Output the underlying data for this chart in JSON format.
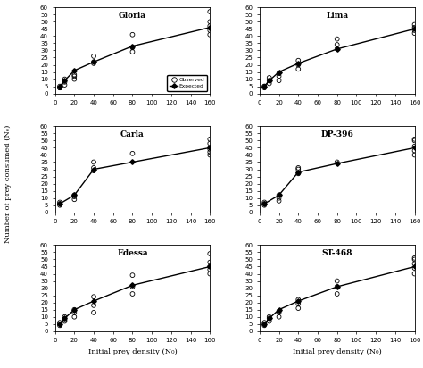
{
  "subplots": [
    {
      "title": "Gloria",
      "observed_x": [
        5,
        5,
        5,
        10,
        10,
        10,
        20,
        20,
        20,
        40,
        40,
        40,
        80,
        80,
        80,
        160,
        160,
        160,
        160,
        160
      ],
      "observed_y": [
        4,
        4,
        5,
        6,
        8,
        10,
        10,
        12,
        13,
        21,
        22,
        26,
        29,
        32,
        41,
        41,
        44,
        47,
        50,
        57
      ],
      "expected_x": [
        5,
        10,
        20,
        40,
        80,
        160
      ],
      "expected_y": [
        5,
        9,
        16,
        22,
        33,
        46
      ]
    },
    {
      "title": "Lima",
      "observed_x": [
        5,
        5,
        5,
        10,
        10,
        10,
        20,
        20,
        20,
        40,
        40,
        40,
        80,
        80,
        80,
        160,
        160,
        160,
        160,
        160
      ],
      "observed_y": [
        4,
        5,
        5,
        7,
        9,
        11,
        9,
        12,
        14,
        17,
        20,
        23,
        31,
        34,
        38,
        42,
        44,
        45,
        46,
        48
      ],
      "expected_x": [
        5,
        10,
        20,
        40,
        80,
        160
      ],
      "expected_y": [
        5,
        9,
        15,
        21,
        31,
        45
      ]
    },
    {
      "title": "Carla",
      "observed_x": [
        5,
        5,
        5,
        20,
        20,
        20,
        40,
        40,
        40,
        80,
        160,
        160,
        160,
        160,
        160
      ],
      "observed_y": [
        5,
        6,
        7,
        9,
        11,
        12,
        29,
        31,
        35,
        41,
        40,
        42,
        44,
        48,
        51
      ],
      "expected_x": [
        5,
        20,
        40,
        80,
        160
      ],
      "expected_y": [
        6,
        12,
        30,
        35,
        45
      ]
    },
    {
      "title": "DP-396",
      "observed_x": [
        5,
        5,
        5,
        20,
        20,
        20,
        40,
        40,
        40,
        80,
        160,
        160,
        160,
        160,
        160
      ],
      "observed_y": [
        5,
        6,
        7,
        8,
        10,
        12,
        27,
        30,
        31,
        35,
        40,
        43,
        46,
        50,
        51
      ],
      "expected_x": [
        5,
        20,
        40,
        80,
        160
      ],
      "expected_y": [
        6,
        12,
        28,
        34,
        45
      ]
    },
    {
      "title": "Edessa",
      "observed_x": [
        5,
        5,
        5,
        10,
        10,
        10,
        20,
        20,
        20,
        40,
        40,
        40,
        80,
        80,
        80,
        160,
        160,
        160,
        160,
        160
      ],
      "observed_y": [
        4,
        5,
        6,
        7,
        8,
        10,
        10,
        13,
        15,
        13,
        18,
        24,
        26,
        31,
        39,
        40,
        43,
        45,
        48,
        54
      ],
      "expected_x": [
        5,
        10,
        20,
        40,
        80,
        160
      ],
      "expected_y": [
        5,
        9,
        15,
        21,
        32,
        45
      ]
    },
    {
      "title": "ST-468",
      "observed_x": [
        5,
        5,
        5,
        10,
        10,
        10,
        20,
        20,
        20,
        40,
        40,
        40,
        80,
        80,
        80,
        160,
        160,
        160,
        160,
        160
      ],
      "observed_y": [
        4,
        5,
        6,
        7,
        9,
        10,
        10,
        13,
        14,
        16,
        19,
        22,
        26,
        31,
        35,
        40,
        44,
        47,
        50,
        51
      ],
      "expected_x": [
        5,
        10,
        20,
        40,
        80,
        160
      ],
      "expected_y": [
        5,
        9,
        15,
        21,
        31,
        45
      ]
    }
  ],
  "ylim": [
    0,
    60
  ],
  "yticks": [
    0,
    5,
    10,
    15,
    20,
    25,
    30,
    35,
    40,
    45,
    50,
    55,
    60
  ],
  "xlim": [
    0,
    160
  ],
  "xticks": [
    0,
    20,
    40,
    60,
    80,
    100,
    120,
    140,
    160
  ],
  "ylabel": "Number of prey consumed (Nₑ)",
  "xlabel": "Initial prey density (N₀)",
  "legend_labels": [
    "Observed",
    "Expected"
  ],
  "line_color": "black",
  "marker_color": "black",
  "obs_marker": "o",
  "exp_marker": "D"
}
